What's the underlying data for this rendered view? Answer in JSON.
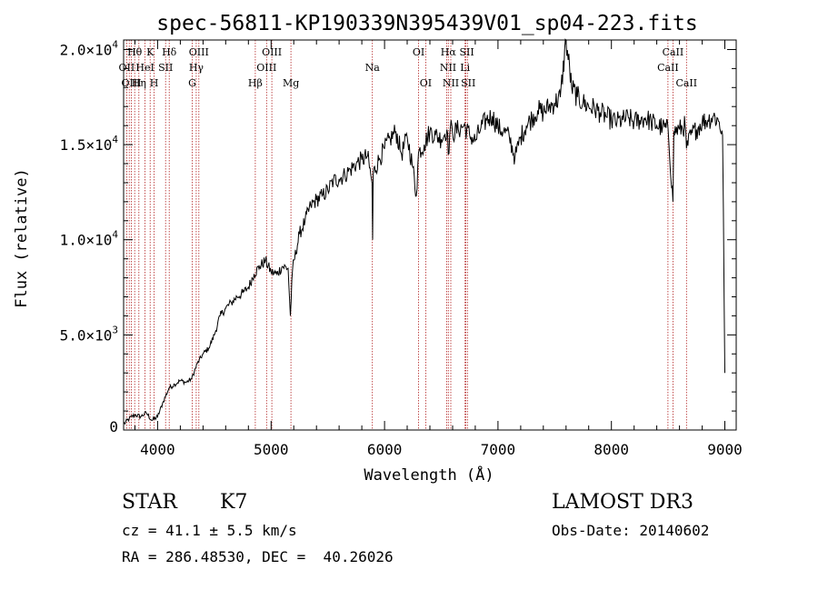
{
  "chart_data": {
    "type": "line",
    "title": "spec-56811-KP190339N395439V01_sp04-223.fits",
    "xlabel": "Wavelength (Å)",
    "ylabel": "Flux (relative)",
    "xlim": [
      3700,
      9100
    ],
    "ylim": [
      0,
      20500
    ],
    "x_ticks": [
      4000,
      5000,
      6000,
      7000,
      8000,
      9000
    ],
    "x_tick_labels": [
      "4000",
      "5000",
      "6000",
      "7000",
      "8000",
      "9000"
    ],
    "y_ticks": [
      0,
      5000,
      10000,
      15000,
      20000
    ],
    "y_tick_labels": [
      {
        "mant": "0",
        "exp": ""
      },
      {
        "mant": "5.0×10",
        "exp": "3"
      },
      {
        "mant": "1.0×10",
        "exp": "4"
      },
      {
        "mant": "1.5×10",
        "exp": "4"
      },
      {
        "mant": "2.0×10",
        "exp": "4"
      }
    ],
    "series": [
      {
        "name": "spectrum",
        "x": [
          3700,
          3750,
          3800,
          3850,
          3900,
          3950,
          4000,
          4050,
          4100,
          4150,
          4200,
          4250,
          4300,
          4350,
          4400,
          4450,
          4500,
          4550,
          4600,
          4650,
          4700,
          4750,
          4800,
          4850,
          4900,
          4950,
          5000,
          5050,
          5100,
          5150,
          5170,
          5190,
          5250,
          5300,
          5350,
          5400,
          5450,
          5500,
          5550,
          5600,
          5650,
          5700,
          5750,
          5800,
          5850,
          5890,
          5895,
          5900,
          5950,
          6000,
          6050,
          6100,
          6150,
          6200,
          6250,
          6280,
          6300,
          6350,
          6400,
          6450,
          6500,
          6550,
          6562,
          6580,
          6600,
          6650,
          6700,
          6750,
          6800,
          6850,
          6900,
          6950,
          7000,
          7050,
          7100,
          7150,
          7200,
          7250,
          7300,
          7350,
          7400,
          7450,
          7500,
          7550,
          7600,
          7650,
          7700,
          7750,
          7800,
          7850,
          7900,
          7950,
          8000,
          8050,
          8100,
          8150,
          8200,
          8250,
          8300,
          8350,
          8400,
          8450,
          8500,
          8542,
          8550,
          8600,
          8650,
          8662,
          8700,
          8750,
          8800,
          8850,
          8900,
          8950,
          8980,
          9000
        ],
        "y": [
          300,
          600,
          800,
          700,
          900,
          500,
          700,
          1500,
          2200,
          2400,
          2600,
          2500,
          2700,
          3500,
          4000,
          4300,
          5000,
          6000,
          6400,
          6700,
          7000,
          7200,
          7500,
          8200,
          8600,
          8900,
          8300,
          8200,
          8600,
          8500,
          6000,
          8500,
          10300,
          11000,
          11800,
          12100,
          12300,
          12600,
          13100,
          13200,
          13400,
          13700,
          14000,
          14200,
          14400,
          13000,
          10000,
          13500,
          14200,
          14800,
          15300,
          15700,
          14500,
          15400,
          13800,
          12300,
          14600,
          15000,
          15700,
          15500,
          15300,
          15800,
          14500,
          15900,
          15600,
          15800,
          16000,
          15500,
          15200,
          15900,
          16300,
          16500,
          15900,
          15700,
          15400,
          14300,
          15400,
          16000,
          16400,
          16800,
          16700,
          17000,
          17200,
          17500,
          20500,
          18000,
          17500,
          17200,
          17000,
          16900,
          16700,
          16500,
          16300,
          16200,
          16300,
          16400,
          16200,
          16300,
          16400,
          16200,
          16000,
          15900,
          15800,
          12000,
          15700,
          15800,
          16000,
          14800,
          15500,
          15800,
          16200,
          16300,
          16500,
          16200,
          15500,
          3000
        ]
      }
    ],
    "line_labels": [
      {
        "text": "Hθ",
        "x": 3798,
        "row": 1
      },
      {
        "text": "K",
        "x": 3934,
        "row": 1
      },
      {
        "text": "Hδ",
        "x": 4102,
        "row": 1
      },
      {
        "text": "OIII",
        "x": 4363,
        "row": 1
      },
      {
        "text": "OIII",
        "x": 5007,
        "row": 1
      },
      {
        "text": "OI",
        "x": 6300,
        "row": 1
      },
      {
        "text": "Hα",
        "x": 6563,
        "row": 1
      },
      {
        "text": "SII",
        "x": 6725,
        "row": 1
      },
      {
        "text": "CaII",
        "x": 8542,
        "row": 1
      },
      {
        "text": "OII",
        "x": 3727,
        "row": 2
      },
      {
        "text": "HeI",
        "x": 3889,
        "row": 2
      },
      {
        "text": "SII",
        "x": 4070,
        "row": 2
      },
      {
        "text": "Hγ",
        "x": 4340,
        "row": 2
      },
      {
        "text": "OIII",
        "x": 4960,
        "row": 2
      },
      {
        "text": "Na",
        "x": 5893,
        "row": 2
      },
      {
        "text": "NII",
        "x": 6560,
        "row": 2
      },
      {
        "text": "Li",
        "x": 6710,
        "row": 2
      },
      {
        "text": "CaII",
        "x": 8498,
        "row": 2
      },
      {
        "text": "OIII",
        "x": 3768,
        "row": 3
      },
      {
        "text": "Hη",
        "x": 3835,
        "row": 3
      },
      {
        "text": "H",
        "x": 3968,
        "row": 3
      },
      {
        "text": "G",
        "x": 4305,
        "row": 3
      },
      {
        "text": "Hβ",
        "x": 4861,
        "row": 3
      },
      {
        "text": "Mg",
        "x": 5175,
        "row": 3
      },
      {
        "text": "OI",
        "x": 6363,
        "row": 3
      },
      {
        "text": "NII",
        "x": 6584,
        "row": 3
      },
      {
        "text": "SII",
        "x": 6738,
        "row": 3
      },
      {
        "text": "CaII",
        "x": 8662,
        "row": 3
      }
    ],
    "line_markers": [
      3727,
      3750,
      3768,
      3798,
      3835,
      3889,
      3934,
      3968,
      4070,
      4102,
      4305,
      4340,
      4363,
      4861,
      4960,
      5007,
      5175,
      5893,
      6300,
      6363,
      6548,
      6563,
      6584,
      6710,
      6717,
      6731,
      8498,
      8542,
      8662
    ]
  },
  "info": {
    "class": "STAR",
    "subclass": "K7",
    "cz": "cz = 41.1 ± 5.5 km/s",
    "radec": "RA = 286.48530, DEC =  40.26026",
    "survey": "LAMOST DR3",
    "obs_date": "Obs-Date: 20140602"
  }
}
